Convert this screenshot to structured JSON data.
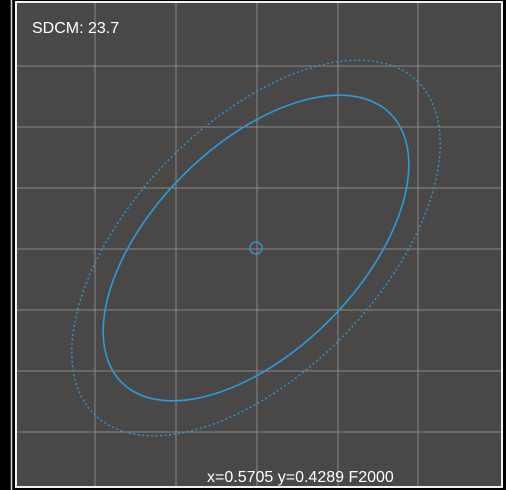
{
  "overlay": {
    "sdcm": "SDCM: 23.7",
    "coordinates": "x=0.5705 y=0.4289 F2000"
  }
}
